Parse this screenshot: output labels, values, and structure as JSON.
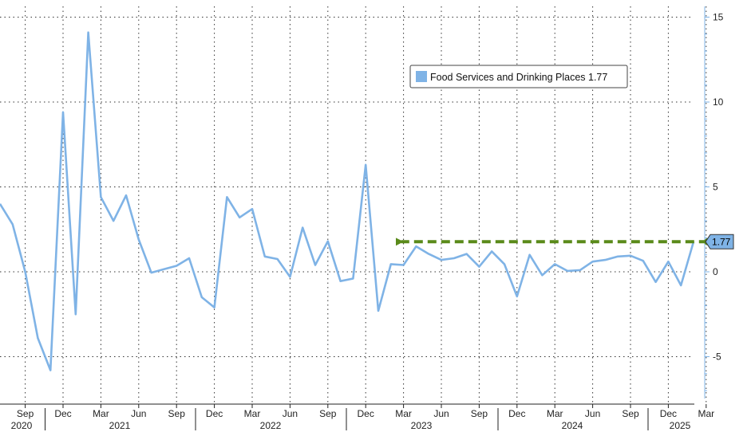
{
  "chart_data": {
    "type": "line",
    "title": "",
    "xlabel": "",
    "ylabel": "",
    "ylim": [
      -7.5,
      15.5
    ],
    "y_ticks": [
      15,
      10,
      5,
      0,
      -5
    ],
    "y_tick_labels": [
      "15",
      "10",
      "5",
      "0",
      "-5"
    ],
    "grid": "dotted",
    "legend_position": "top-right",
    "x_month_labels": [
      "Sep",
      "Dec",
      "Mar",
      "Jun",
      "Sep",
      "Dec",
      "Mar",
      "Jun",
      "Sep",
      "Dec",
      "Mar",
      "Jun",
      "Sep",
      "Dec",
      "Mar",
      "Jun",
      "Sep",
      "Dec",
      "Mar"
    ],
    "x_year_labels": [
      "2020",
      "2021",
      "2022",
      "2023",
      "2024",
      "2025"
    ],
    "series": [
      {
        "name": "Food Services and Drinking Places",
        "legend_label": "Food Services and Drinking Places 1.77",
        "color": "#7fb3e6",
        "last_value_label": "1.77",
        "x": [
          "2020-07",
          "2020-08",
          "2020-09",
          "2020-10",
          "2020-11",
          "2020-12",
          "2021-01",
          "2021-02",
          "2021-03",
          "2021-04",
          "2021-05",
          "2021-06",
          "2021-07",
          "2021-08",
          "2021-09",
          "2021-10",
          "2021-11",
          "2021-12",
          "2022-01",
          "2022-02",
          "2022-03",
          "2022-04",
          "2022-05",
          "2022-06",
          "2022-07",
          "2022-08",
          "2022-09",
          "2022-10",
          "2022-11",
          "2022-12",
          "2023-01",
          "2023-02",
          "2023-03",
          "2023-04",
          "2023-05",
          "2023-06",
          "2023-07",
          "2023-08",
          "2023-09",
          "2023-10",
          "2023-11",
          "2023-12",
          "2024-01",
          "2024-02",
          "2024-03",
          "2024-04",
          "2024-05",
          "2024-06",
          "2024-07",
          "2024-08",
          "2024-09",
          "2024-10",
          "2024-11",
          "2024-12",
          "2025-01",
          "2025-02",
          "2025-03"
        ],
        "values": [
          4.0,
          2.8,
          0.0,
          -3.9,
          -5.8,
          9.4,
          -2.5,
          14.1,
          4.4,
          3.0,
          4.5,
          1.9,
          -0.05,
          0.15,
          0.35,
          0.8,
          -1.5,
          -2.1,
          4.4,
          3.2,
          3.7,
          0.9,
          0.75,
          -0.3,
          2.6,
          0.4,
          1.8,
          -0.55,
          -0.4,
          6.3,
          -2.3,
          0.45,
          0.4,
          1.5,
          1.05,
          0.7,
          0.8,
          1.05,
          0.3,
          1.2,
          0.45,
          -1.45,
          1.0,
          -0.2,
          0.45,
          0.05,
          0.1,
          0.6,
          0.7,
          0.9,
          0.95,
          0.65,
          -0.6,
          0.6,
          -0.8,
          1.77,
          1.77
        ]
      }
    ],
    "annotation": {
      "type": "dashed-arrow",
      "color": "#5a8a1a",
      "from": "2025-03",
      "to": "2023-02",
      "value": 1.77
    }
  }
}
